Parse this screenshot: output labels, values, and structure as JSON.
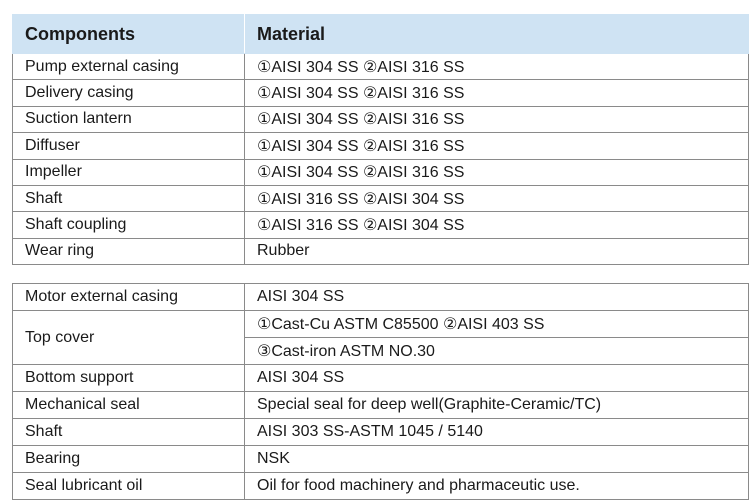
{
  "header": {
    "components": "Components",
    "material": "Material"
  },
  "group1": [
    {
      "component": "Pump external casing",
      "material": "①AISI 304 SS ②AISI 316 SS"
    },
    {
      "component": "Delivery casing",
      "material": "①AISI 304 SS ②AISI 316 SS"
    },
    {
      "component": "Suction lantern",
      "material": "①AISI 304 SS ②AISI 316 SS"
    },
    {
      "component": "Diffuser",
      "material": "①AISI 304 SS ②AISI 316 SS"
    },
    {
      "component": "Impeller",
      "material": "①AISI 304 SS ②AISI 316 SS"
    },
    {
      "component": "Shaft",
      "material": "①AISI 316 SS ②AISI 304 SS"
    },
    {
      "component": "Shaft coupling",
      "material": "①AISI 316 SS ②AISI 304 SS"
    },
    {
      "component": "Wear ring",
      "material": "Rubber"
    }
  ],
  "group2": {
    "motor_casing": {
      "component": "Motor external casing",
      "material": "AISI 304 SS"
    },
    "top_cover": {
      "component": "Top cover",
      "material_line1": "①Cast-Cu ASTM C85500 ②AISI 403 SS",
      "material_line2": "③Cast-iron ASTM NO.30"
    },
    "rest": [
      {
        "component": "Bottom support",
        "material": "AISI 304 SS"
      },
      {
        "component": "Mechanical seal",
        "material": "Special seal for deep well(Graphite-Ceramic/TC)"
      },
      {
        "component": "Shaft",
        "material": "AISI 303 SS-ASTM 1045 / 5140"
      },
      {
        "component": "Bearing",
        "material": "NSK"
      },
      {
        "component": "Seal lubricant oil",
        "material": "Oil for food machinery and pharmaceutic use."
      }
    ]
  }
}
